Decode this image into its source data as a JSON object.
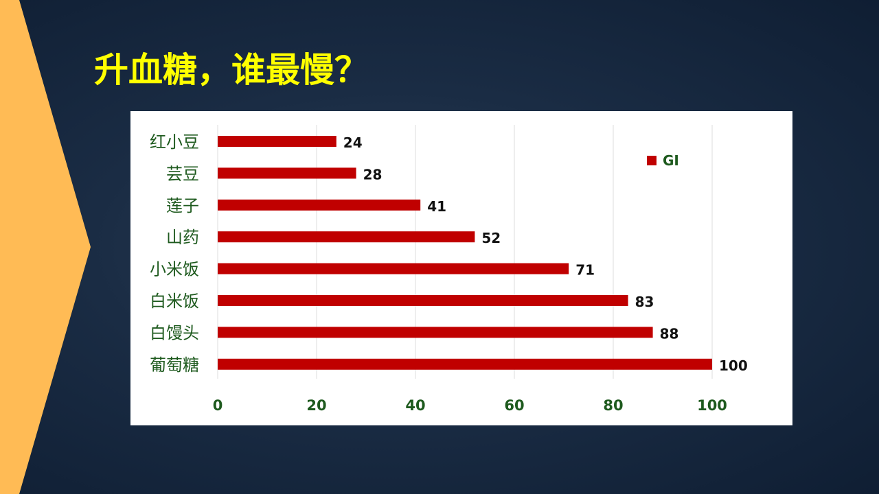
{
  "slide": {
    "title": "升血糖，谁最慢？"
  },
  "colors": {
    "background": "#132740",
    "accent_chevron": "#ffbb55",
    "title": "#ffff00",
    "bar": "#c00000",
    "label_green": "#1e5a1e",
    "grid": "#dcdcdc"
  },
  "chart_data": {
    "type": "bar",
    "orientation": "horizontal",
    "categories": [
      "红小豆",
      "芸豆",
      "莲子",
      "山药",
      "小米饭",
      "白米饭",
      "白馒头",
      "葡萄糖"
    ],
    "series": [
      {
        "name": "GI",
        "values": [
          24,
          28,
          41,
          52,
          71,
          83,
          88,
          100
        ]
      }
    ],
    "x_ticks": [
      "0",
      "20",
      "40",
      "60",
      "80",
      "100"
    ],
    "xlim": [
      0,
      100
    ],
    "grid": "vertical",
    "legend_position": "top-right",
    "title": "",
    "xlabel": "",
    "ylabel": ""
  }
}
